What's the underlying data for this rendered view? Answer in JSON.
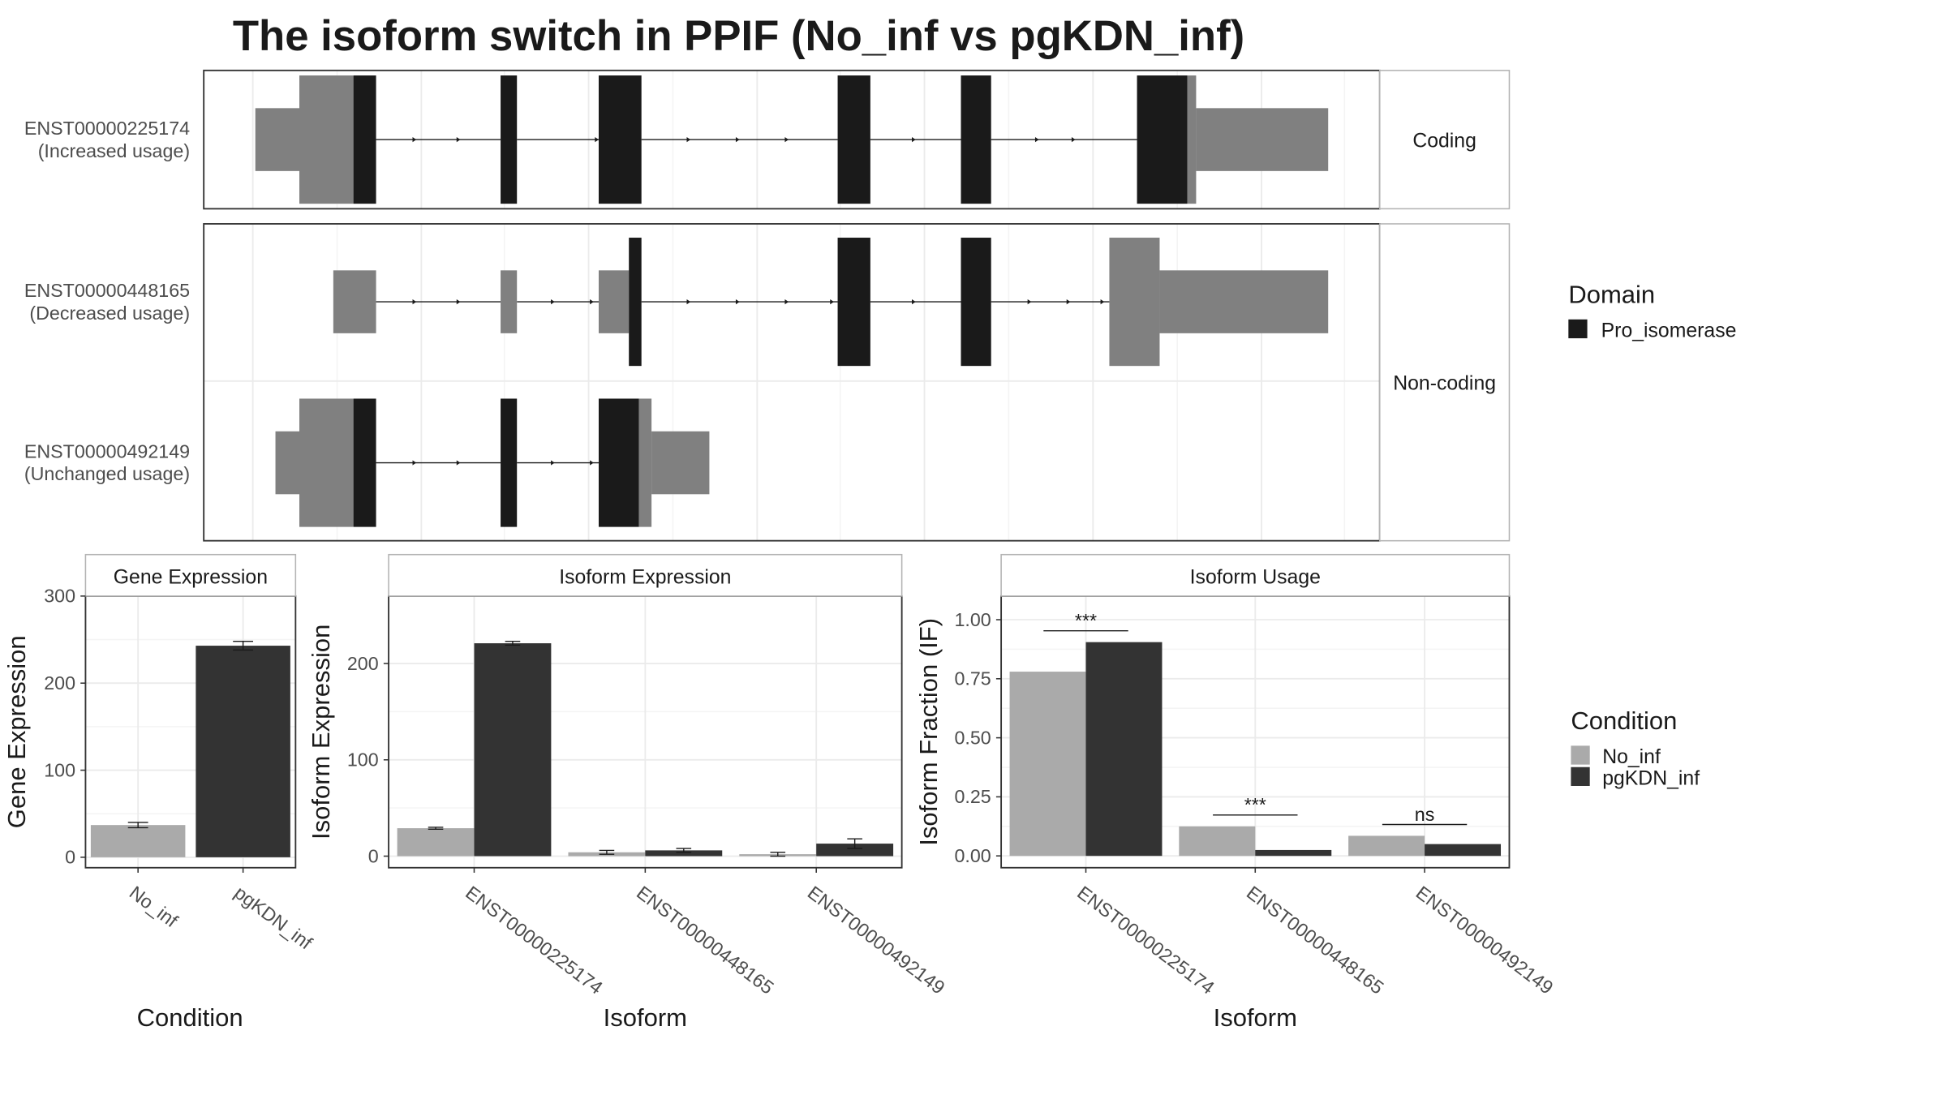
{
  "title": "The isoform switch in PPIF (No_inf vs pgKDN_inf)",
  "colors": {
    "utr": "#808080",
    "domain": "#1a1a1a",
    "no_inf": "#aaaaaa",
    "pgkdn_inf": "#333333",
    "grid": "#ebebeb",
    "strip_border": "#b3b3b3",
    "panel_border": "#333333"
  },
  "isoform_structure": {
    "facets": [
      {
        "label": "Coding",
        "isoforms": [
          0
        ]
      },
      {
        "label": "Non-coding",
        "isoforms": [
          1,
          2
        ]
      }
    ],
    "isoforms": [
      {
        "id": "ENST00000225174",
        "usage": "(Increased usage)"
      },
      {
        "id": "ENST00000448165",
        "usage": "(Decreased usage)"
      },
      {
        "id": "ENST00000492149",
        "usage": "(Unchanged usage)"
      }
    ],
    "legend_title": "Domain",
    "legend_items": [
      {
        "label": "Pro_isomerase",
        "color": "#1a1a1a"
      }
    ]
  },
  "chart_data": [
    {
      "type": "bar",
      "title": "Gene Expression",
      "xlabel": "Condition",
      "ylabel": "Gene Expression",
      "ylim": [
        -12,
        300
      ],
      "yticks": [
        0,
        100,
        200,
        300
      ],
      "categories": [
        "No_inf",
        "pgKDN_inf"
      ],
      "values": [
        37,
        243
      ],
      "errors": [
        3,
        5
      ],
      "grid": true
    },
    {
      "type": "bar",
      "title": "Isoform Expression",
      "xlabel": "Isoform",
      "ylabel": "Isoform Expression",
      "ylim": [
        -12,
        270
      ],
      "yticks": [
        0,
        100,
        200
      ],
      "categories": [
        "ENST00000225174",
        "ENST00000448165",
        "ENST00000492149"
      ],
      "series": [
        {
          "name": "No_inf",
          "values": [
            29,
            4,
            2
          ],
          "errors": [
            1,
            2,
            2
          ]
        },
        {
          "name": "pgKDN_inf",
          "values": [
            221,
            6,
            13
          ],
          "errors": [
            2,
            2,
            5
          ]
        }
      ],
      "grid": true
    },
    {
      "type": "bar",
      "title": "Isoform Usage",
      "xlabel": "Isoform",
      "ylabel": "Isoform Fraction (IF)",
      "ylim": [
        -0.05,
        1.1
      ],
      "yticks": [
        "0.00",
        "0.25",
        "0.50",
        "0.75",
        "1.00"
      ],
      "categories": [
        "ENST00000225174",
        "ENST00000448165",
        "ENST00000492149"
      ],
      "series": [
        {
          "name": "No_inf",
          "values": [
            0.78,
            0.125,
            0.085
          ]
        },
        {
          "name": "pgKDN_inf",
          "values": [
            0.905,
            0.025,
            0.05
          ]
        }
      ],
      "significance": [
        "***",
        "***",
        "ns"
      ],
      "grid": true
    }
  ],
  "condition_legend": {
    "title": "Condition",
    "items": [
      {
        "label": "No_inf",
        "color": "#aaaaaa"
      },
      {
        "label": "pgKDN_inf",
        "color": "#333333"
      }
    ]
  }
}
